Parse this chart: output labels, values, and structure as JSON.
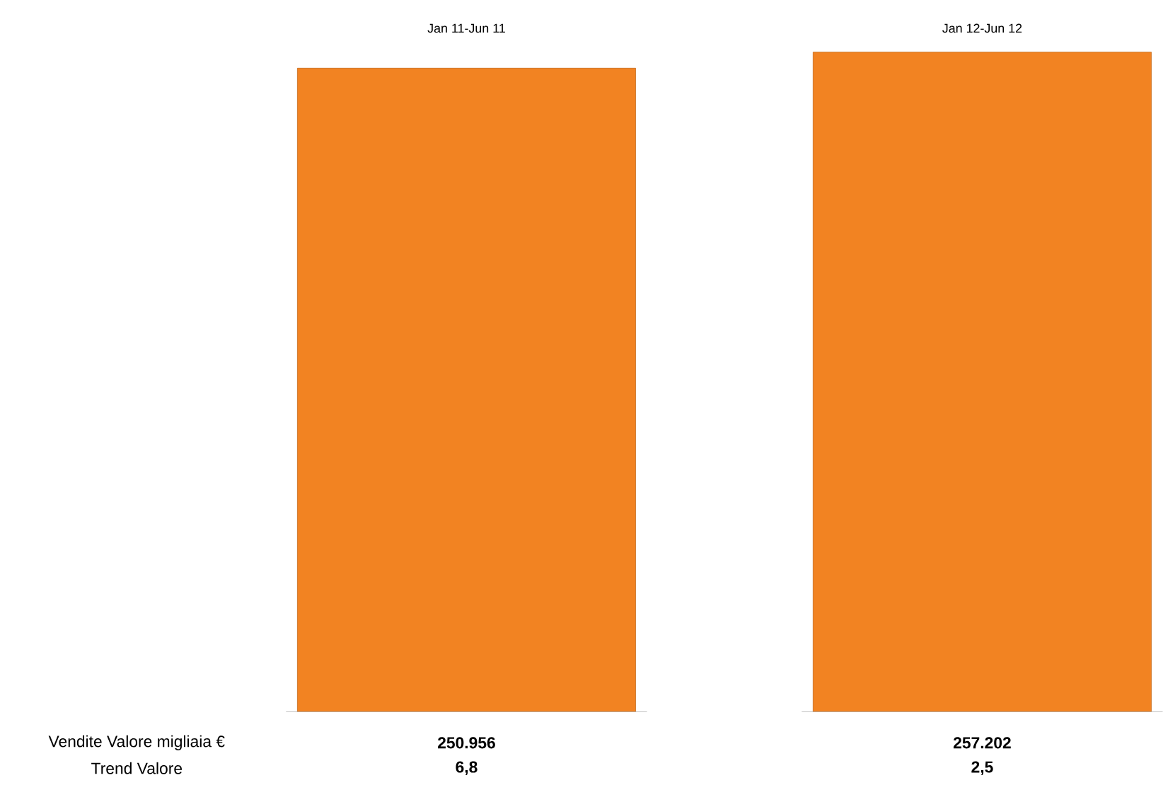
{
  "chart_data": {
    "type": "bar",
    "categories": [
      "Jan 11-Jun 11",
      "Jan 12-Jun 12"
    ],
    "values": [
      250956,
      257202
    ],
    "value_labels": [
      "250.956",
      "257.202"
    ],
    "color": "#f28322",
    "annotations": [
      "Vendite Valore migliaia €",
      "Trend Valore",
      "6,8",
      "2,5"
    ]
  }
}
